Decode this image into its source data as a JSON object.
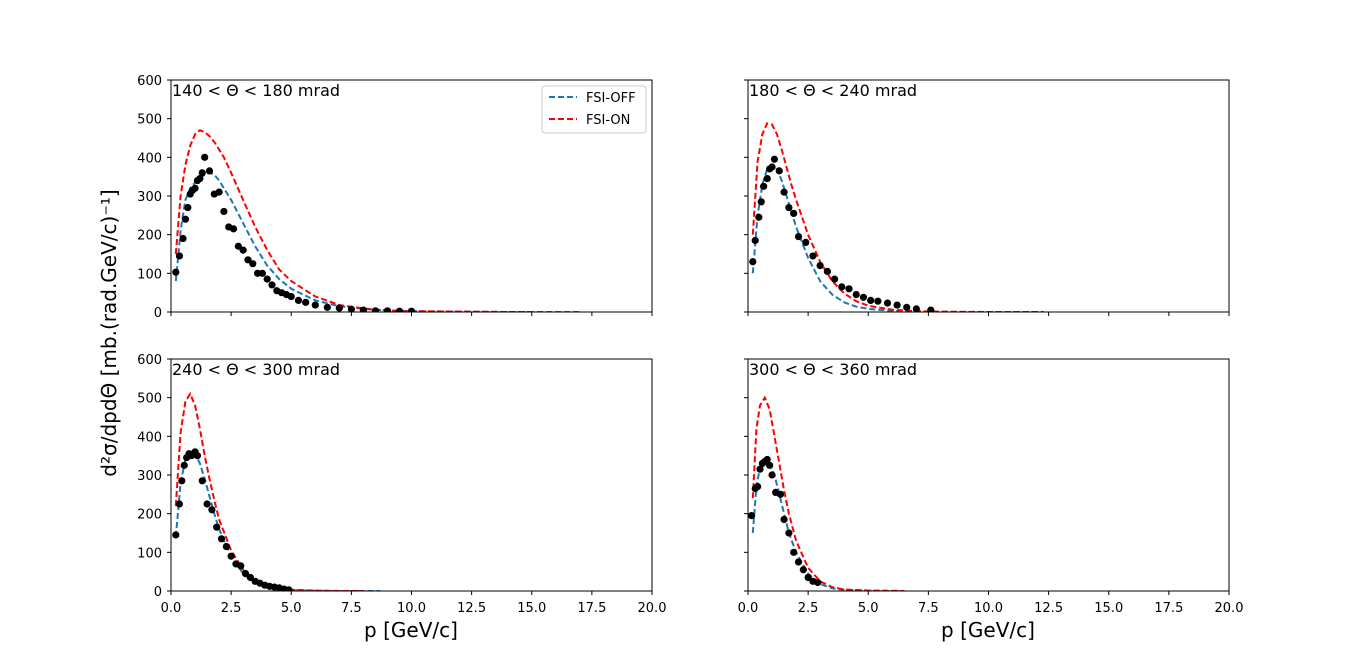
{
  "figure": {
    "ylabel": "d²σ/dpdΘ [mb.(rad.GeV/c)⁻¹]",
    "xlabel": "p [GeV/c]"
  },
  "legend": {
    "items": [
      {
        "label": "FSI-OFF",
        "color": "#1f77b4"
      },
      {
        "label": "FSI-ON",
        "color": "#d62728"
      }
    ]
  },
  "colors": {
    "off": "#1f77b4",
    "on": "#ff0000",
    "data": "#000000"
  },
  "chart_data": [
    {
      "type": "line",
      "title": "140 < Θ < 180 mrad",
      "xlim": [
        0,
        20
      ],
      "ylim": [
        0,
        600
      ],
      "xticks": [
        "0.0",
        "2.5",
        "5.0",
        "7.5",
        "10.0",
        "12.5",
        "15.0",
        "17.5",
        "20.0"
      ],
      "yticks": [
        "0",
        "100",
        "200",
        "300",
        "400",
        "500",
        "600"
      ],
      "series": [
        {
          "name": "FSI-OFF",
          "x": [
            0.2,
            0.4,
            0.6,
            0.8,
            1.0,
            1.2,
            1.4,
            1.6,
            1.8,
            2.0,
            2.2,
            2.5,
            3.0,
            3.5,
            4.0,
            4.5,
            5.0,
            6.0,
            7.0,
            8.0,
            9.0,
            10.0,
            12.0,
            14.0,
            17.0
          ],
          "y": [
            80,
            210,
            290,
            320,
            335,
            345,
            355,
            360,
            355,
            340,
            320,
            290,
            230,
            170,
            120,
            85,
            60,
            30,
            15,
            8,
            4,
            2,
            1,
            0,
            0
          ]
        },
        {
          "name": "FSI-ON",
          "x": [
            0.2,
            0.4,
            0.6,
            0.8,
            1.0,
            1.2,
            1.4,
            1.6,
            1.8,
            2.0,
            2.2,
            2.5,
            3.0,
            3.5,
            4.0,
            4.5,
            5.0,
            6.0,
            7.0,
            8.0,
            9.0,
            10.0,
            12.0,
            14.0,
            15.0
          ],
          "y": [
            150,
            300,
            380,
            430,
            460,
            470,
            465,
            455,
            440,
            420,
            400,
            360,
            290,
            220,
            160,
            110,
            80,
            40,
            18,
            9,
            4,
            2,
            1,
            0,
            0
          ]
        },
        {
          "name": "data",
          "x": [
            0.2,
            0.35,
            0.5,
            0.6,
            0.7,
            0.8,
            0.9,
            1.0,
            1.1,
            1.2,
            1.3,
            1.4,
            1.6,
            1.8,
            2.0,
            2.2,
            2.4,
            2.6,
            2.8,
            3.0,
            3.2,
            3.4,
            3.6,
            3.8,
            4.0,
            4.2,
            4.4,
            4.6,
            4.8,
            5.0,
            5.3,
            5.6,
            6.0,
            6.5,
            7.0,
            7.5,
            8.0,
            8.5,
            9.0,
            9.5,
            10.0
          ],
          "y": [
            103,
            145,
            190,
            240,
            270,
            305,
            315,
            320,
            340,
            345,
            360,
            400,
            365,
            305,
            310,
            260,
            220,
            215,
            170,
            160,
            135,
            125,
            100,
            100,
            85,
            70,
            55,
            50,
            45,
            40,
            30,
            25,
            18,
            12,
            10,
            7,
            5,
            3,
            3,
            2,
            2
          ]
        }
      ]
    },
    {
      "type": "line",
      "title": "180 < Θ < 240 mrad",
      "xlim": [
        0,
        20
      ],
      "ylim": [
        0,
        600
      ],
      "xticks": [
        "0.0",
        "2.5",
        "5.0",
        "7.5",
        "10.0",
        "12.5",
        "15.0",
        "17.5",
        "20.0"
      ],
      "yticks": [
        "0",
        "100",
        "200",
        "300",
        "400",
        "500",
        "600"
      ],
      "series": [
        {
          "name": "FSI-OFF",
          "x": [
            0.2,
            0.4,
            0.6,
            0.8,
            1.0,
            1.2,
            1.4,
            1.6,
            1.8,
            2.0,
            2.5,
            3.0,
            3.5,
            4.0,
            4.5,
            5.0,
            6.0,
            7.0,
            8.0,
            10.0,
            12.0
          ],
          "y": [
            100,
            250,
            330,
            370,
            380,
            370,
            340,
            300,
            260,
            220,
            140,
            80,
            45,
            25,
            14,
            8,
            3,
            1,
            0,
            0,
            0
          ]
        },
        {
          "name": "FSI-ON",
          "x": [
            0.2,
            0.4,
            0.6,
            0.8,
            1.0,
            1.2,
            1.4,
            1.6,
            1.8,
            2.0,
            2.5,
            3.0,
            3.5,
            4.0,
            4.5,
            5.0,
            6.0,
            7.0,
            8.0,
            10.0,
            12.3
          ],
          "y": [
            200,
            390,
            460,
            488,
            485,
            460,
            420,
            375,
            330,
            290,
            200,
            130,
            80,
            48,
            28,
            16,
            6,
            2,
            1,
            0,
            0
          ]
        },
        {
          "name": "data",
          "x": [
            0.2,
            0.3,
            0.45,
            0.55,
            0.65,
            0.8,
            0.9,
            1.0,
            1.1,
            1.3,
            1.5,
            1.7,
            1.9,
            2.1,
            2.4,
            2.7,
            3.0,
            3.3,
            3.6,
            3.9,
            4.2,
            4.5,
            4.8,
            5.1,
            5.4,
            5.8,
            6.2,
            6.6,
            7.0,
            7.6
          ],
          "y": [
            130,
            185,
            245,
            285,
            325,
            345,
            370,
            375,
            395,
            365,
            310,
            270,
            255,
            195,
            180,
            145,
            120,
            105,
            85,
            65,
            60,
            45,
            38,
            30,
            28,
            23,
            18,
            12,
            8,
            5
          ]
        }
      ]
    },
    {
      "type": "line",
      "title": "240 < Θ < 300 mrad",
      "xlim": [
        0,
        20
      ],
      "ylim": [
        0,
        600
      ],
      "xticks": [
        "0.0",
        "2.5",
        "5.0",
        "7.5",
        "10.0",
        "12.5",
        "15.0",
        "17.5",
        "20.0"
      ],
      "yticks": [
        "0",
        "100",
        "200",
        "300",
        "400",
        "500",
        "600"
      ],
      "series": [
        {
          "name": "FSI-OFF",
          "x": [
            0.2,
            0.4,
            0.6,
            0.8,
            1.0,
            1.2,
            1.4,
            1.6,
            1.8,
            2.0,
            2.5,
            3.0,
            3.5,
            4.0,
            4.5,
            5.0,
            6.0,
            7.0,
            8.7
          ],
          "y": [
            140,
            280,
            340,
            360,
            355,
            330,
            290,
            245,
            200,
            160,
            90,
            45,
            22,
            10,
            5,
            2,
            1,
            0,
            0
          ]
        },
        {
          "name": "FSI-ON",
          "x": [
            0.2,
            0.4,
            0.6,
            0.8,
            1.0,
            1.2,
            1.4,
            1.6,
            1.8,
            2.0,
            2.5,
            3.0,
            3.5,
            4.0,
            4.5,
            5.0,
            6.0,
            7.0,
            8.0
          ],
          "y": [
            220,
            410,
            490,
            510,
            480,
            420,
            350,
            290,
            235,
            185,
            105,
            55,
            27,
            13,
            6,
            3,
            1,
            0,
            0
          ]
        },
        {
          "name": "data",
          "x": [
            0.2,
            0.35,
            0.45,
            0.55,
            0.65,
            0.75,
            0.85,
            1.0,
            1.1,
            1.3,
            1.5,
            1.7,
            1.9,
            2.1,
            2.3,
            2.5,
            2.7,
            2.9,
            3.1,
            3.3,
            3.5,
            3.7,
            3.9,
            4.1,
            4.3,
            4.5,
            4.7,
            4.9
          ],
          "y": [
            145,
            225,
            285,
            325,
            345,
            355,
            350,
            360,
            350,
            285,
            225,
            210,
            165,
            135,
            115,
            90,
            70,
            65,
            45,
            35,
            25,
            20,
            15,
            12,
            10,
            8,
            5,
            3
          ]
        }
      ]
    },
    {
      "type": "line",
      "title": "300 < Θ < 360 mrad",
      "xlim": [
        0,
        20
      ],
      "ylim": [
        0,
        600
      ],
      "xticks": [
        "0.0",
        "2.5",
        "5.0",
        "7.5",
        "10.0",
        "12.5",
        "15.0",
        "17.5",
        "20.0"
      ],
      "yticks": [
        "0",
        "100",
        "200",
        "300",
        "400",
        "500",
        "600"
      ],
      "series": [
        {
          "name": "FSI-OFF",
          "x": [
            0.2,
            0.35,
            0.5,
            0.7,
            0.9,
            1.1,
            1.3,
            1.5,
            1.7,
            2.0,
            2.5,
            3.0,
            3.5,
            4.0,
            5.0,
            6.5
          ],
          "y": [
            150,
            270,
            320,
            340,
            330,
            300,
            250,
            200,
            150,
            100,
            45,
            18,
            7,
            3,
            1,
            0
          ]
        },
        {
          "name": "FSI-ON",
          "x": [
            0.2,
            0.35,
            0.5,
            0.7,
            0.9,
            1.1,
            1.3,
            1.5,
            1.7,
            2.0,
            2.5,
            3.0,
            3.5,
            4.0,
            5.0,
            6.5
          ],
          "y": [
            240,
            420,
            480,
            500,
            470,
            400,
            330,
            260,
            200,
            130,
            60,
            25,
            10,
            4,
            1,
            0
          ]
        },
        {
          "name": "data",
          "x": [
            0.15,
            0.3,
            0.4,
            0.5,
            0.6,
            0.7,
            0.8,
            0.9,
            1.0,
            1.15,
            1.35,
            1.5,
            1.7,
            1.9,
            2.1,
            2.3,
            2.5,
            2.7,
            2.9
          ],
          "y": [
            195,
            265,
            270,
            315,
            330,
            335,
            340,
            325,
            300,
            255,
            250,
            185,
            150,
            100,
            75,
            55,
            35,
            25,
            22
          ]
        }
      ]
    }
  ]
}
